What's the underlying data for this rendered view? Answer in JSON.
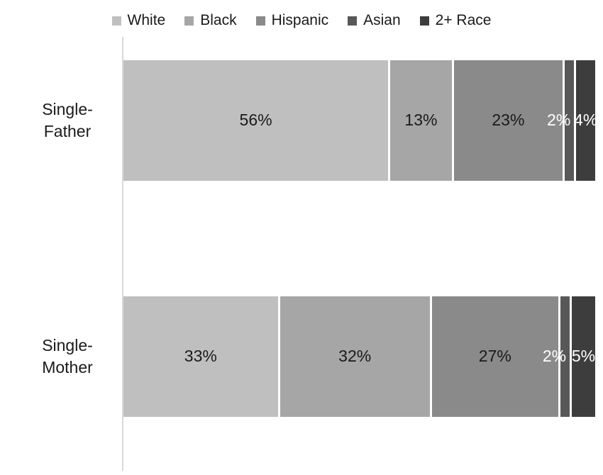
{
  "chart_data": {
    "type": "bar",
    "orientation": "horizontal",
    "stacked": true,
    "unit": "%",
    "title": "",
    "legend_position": "top",
    "grid": false,
    "axis": {
      "baseline_color": "#d9d9d9"
    },
    "categories": [
      {
        "label": "Single-Father",
        "lines": [
          "Single-",
          "Father"
        ]
      },
      {
        "label": "Single-Mother",
        "lines": [
          "Single-",
          "Mother"
        ]
      }
    ],
    "series": [
      {
        "name": "White",
        "color": "#bfbfbf",
        "label_color": "#1a1a1a",
        "values": [
          56,
          33
        ]
      },
      {
        "name": "Black",
        "color": "#a6a6a6",
        "label_color": "#1a1a1a",
        "values": [
          13,
          32
        ]
      },
      {
        "name": "Hispanic",
        "color": "#8a8a8a",
        "label_color": "#1a1a1a",
        "values": [
          23,
          27
        ]
      },
      {
        "name": "Asian",
        "color": "#585858",
        "label_color": "#ffffff",
        "values": [
          2,
          2
        ]
      },
      {
        "name": "2+ Race",
        "color": "#3d3d3d",
        "label_color": "#ffffff",
        "values": [
          4,
          5
        ]
      }
    ],
    "value_labels": [
      [
        "56%",
        "13%",
        "23%",
        "2%",
        "4%"
      ],
      [
        "33%",
        "32%",
        "27%",
        "2%",
        "5%"
      ]
    ]
  }
}
